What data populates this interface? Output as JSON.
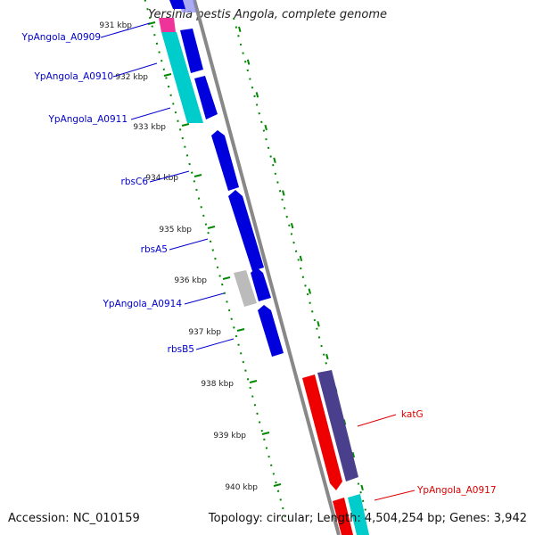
{
  "title": "Yersinia pestis Angola, complete genome",
  "footer": {
    "accession": "Accession: NC_010159",
    "info": "Topology: circular; Length: 4,504,254 bp; Genes: 3,942"
  },
  "colors": {
    "forward_cds": "#0000dd",
    "reverse_cds": "#ee0000",
    "trna": "#00cccc",
    "pseudo": "#bbbbbb",
    "pink": "#ee3399",
    "dark_purple": "#4a3f8c",
    "backbone": "#888888",
    "dot_ticks": "#008800"
  },
  "ticks": [
    {
      "label": "931 kbp"
    },
    {
      "label": "932 kbp"
    },
    {
      "label": "933 kbp"
    },
    {
      "label": "934 kbp"
    },
    {
      "label": "935 kbp"
    },
    {
      "label": "936 kbp"
    },
    {
      "label": "937 kbp"
    },
    {
      "label": "938 kbp"
    },
    {
      "label": "939 kbp"
    },
    {
      "label": "940 kbp"
    }
  ],
  "gene_labels": [
    {
      "text": "YpAngola_A0909",
      "strand": "forward"
    },
    {
      "text": "YpAngola_A0910",
      "strand": "forward"
    },
    {
      "text": "YpAngola_A0911",
      "strand": "forward"
    },
    {
      "text": "rbsC6",
      "strand": "forward"
    },
    {
      "text": "rbsA5",
      "strand": "forward"
    },
    {
      "text": "YpAngola_A0914",
      "strand": "forward"
    },
    {
      "text": "rbsB5",
      "strand": "forward"
    },
    {
      "text": "katG",
      "strand": "reverse"
    },
    {
      "text": "YpAngola_A0917",
      "strand": "reverse"
    }
  ]
}
